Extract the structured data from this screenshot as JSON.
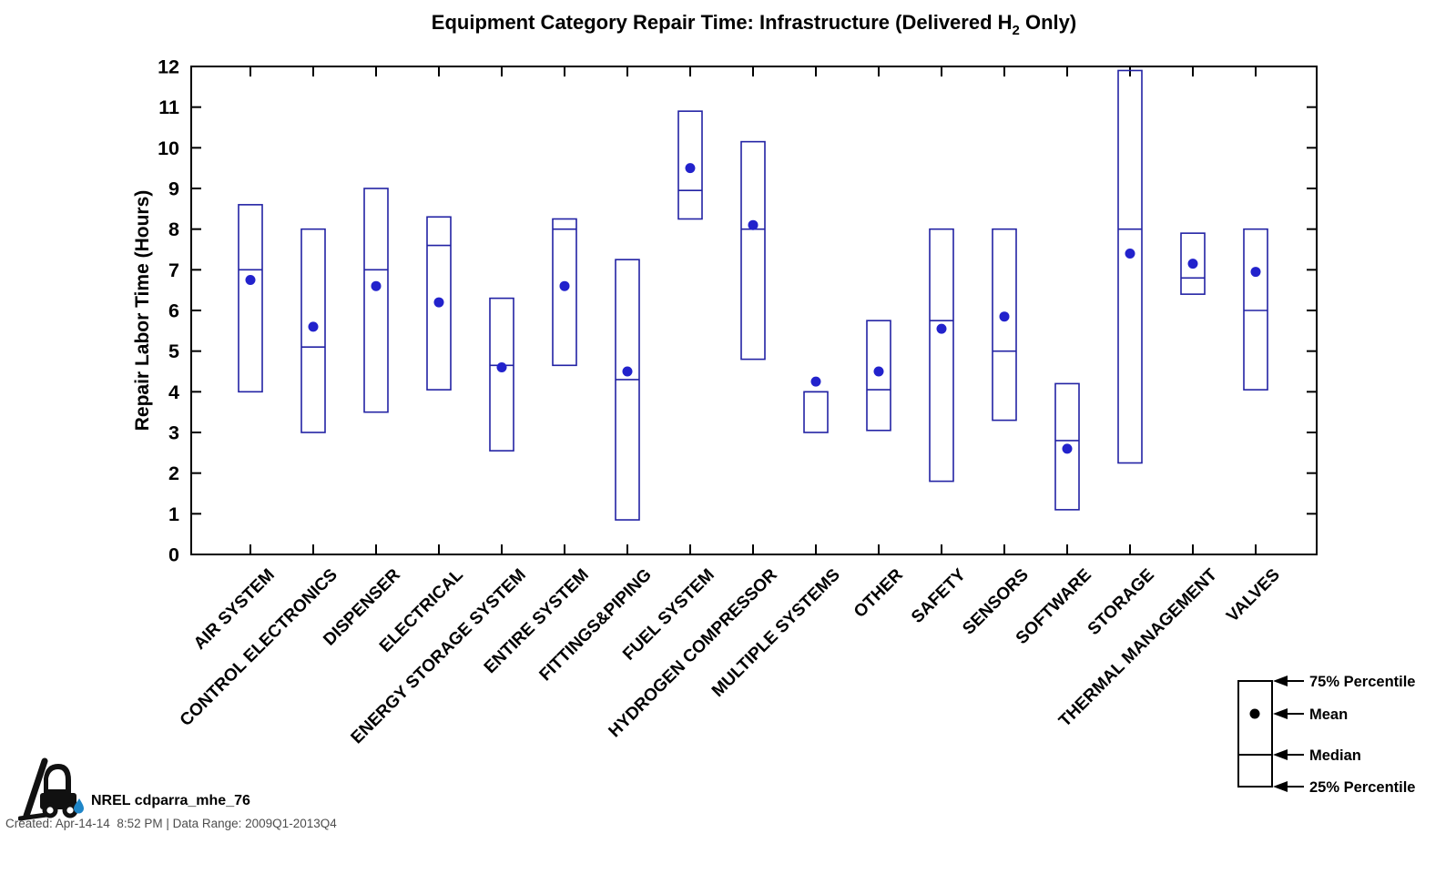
{
  "title": {
    "prefix": "Equipment Category Repair Time: Infrastructure (Delivered H",
    "subscript": "2",
    "suffix": " Only)"
  },
  "chart_data": {
    "type": "box",
    "title": "Equipment Category Repair Time: Infrastructure (Delivered H2 Only)",
    "xlabel": "",
    "ylabel": "Repair Labor Time (Hours)",
    "ylim": [
      0,
      12
    ],
    "yticks": [
      0,
      1,
      2,
      3,
      4,
      5,
      6,
      7,
      8,
      9,
      10,
      11,
      12
    ],
    "grid": false,
    "categories": [
      "AIR SYSTEM",
      "CONTROL ELECTRONICS",
      "DISPENSER",
      "ELECTRICAL",
      "ENERGY STORAGE SYSTEM",
      "ENTIRE SYSTEM",
      "FITTINGS&PIPING",
      "FUEL SYSTEM",
      "HYDROGEN COMPRESSOR",
      "MULTIPLE SYSTEMS",
      "OTHER",
      "SAFETY",
      "SENSORS",
      "SOFTWARE",
      "STORAGE",
      "THERMAL MANAGEMENT",
      "VALVES"
    ],
    "boxes": [
      {
        "label": "AIR SYSTEM",
        "q1": 4.0,
        "median": 7.0,
        "q3": 8.6,
        "mean": 6.75
      },
      {
        "label": "CONTROL ELECTRONICS",
        "q1": 3.0,
        "median": 5.1,
        "q3": 8.0,
        "mean": 5.6
      },
      {
        "label": "DISPENSER",
        "q1": 3.5,
        "median": 7.0,
        "q3": 9.0,
        "mean": 6.6
      },
      {
        "label": "ELECTRICAL",
        "q1": 4.05,
        "median": 7.6,
        "q3": 8.3,
        "mean": 6.2
      },
      {
        "label": "ENERGY STORAGE SYSTEM",
        "q1": 2.55,
        "median": 4.65,
        "q3": 6.3,
        "mean": 4.6
      },
      {
        "label": "ENTIRE SYSTEM",
        "q1": 4.65,
        "median": 8.0,
        "q3": 8.25,
        "mean": 6.6
      },
      {
        "label": "FITTINGS&PIPING",
        "q1": 0.85,
        "median": 4.3,
        "q3": 7.25,
        "mean": 4.5
      },
      {
        "label": "FUEL SYSTEM",
        "q1": 8.25,
        "median": 8.95,
        "q3": 10.9,
        "mean": 9.5
      },
      {
        "label": "HYDROGEN COMPRESSOR",
        "q1": 4.8,
        "median": 8.0,
        "q3": 10.15,
        "mean": 8.1
      },
      {
        "label": "MULTIPLE SYSTEMS",
        "q1": 3.0,
        "median": 4.0,
        "q3": 4.0,
        "mean": 4.25
      },
      {
        "label": "OTHER",
        "q1": 3.05,
        "median": 4.05,
        "q3": 5.75,
        "mean": 4.5
      },
      {
        "label": "SAFETY",
        "q1": 1.8,
        "median": 5.75,
        "q3": 8.0,
        "mean": 5.55
      },
      {
        "label": "SENSORS",
        "q1": 3.3,
        "median": 5.0,
        "q3": 8.0,
        "mean": 5.85
      },
      {
        "label": "SOFTWARE",
        "q1": 1.1,
        "median": 2.8,
        "q3": 4.2,
        "mean": 2.6
      },
      {
        "label": "STORAGE",
        "q1": 2.25,
        "median": 8.0,
        "q3": 11.9,
        "mean": 7.4
      },
      {
        "label": "THERMAL MANAGEMENT",
        "q1": 6.4,
        "median": 6.8,
        "q3": 7.9,
        "mean": 7.15
      },
      {
        "label": "VALVES",
        "q1": 4.05,
        "median": 6.0,
        "q3": 8.0,
        "mean": 6.95
      }
    ],
    "legend_position": "bottom-right"
  },
  "legend": {
    "items": [
      "75% Percentile",
      "Mean",
      "Median",
      "25% Percentile"
    ]
  },
  "footer": {
    "brand": "NREL cdparra_mhe_76",
    "created": "Created: Apr-14-14  8:52 PM | Data Range: 2009Q1-2013Q4"
  },
  "colors": {
    "box": "#2222a4",
    "mean_dot": "#2222cc",
    "axis": "#000000",
    "legend_ink": "#000000",
    "drop_blue": "#1f86c8"
  }
}
